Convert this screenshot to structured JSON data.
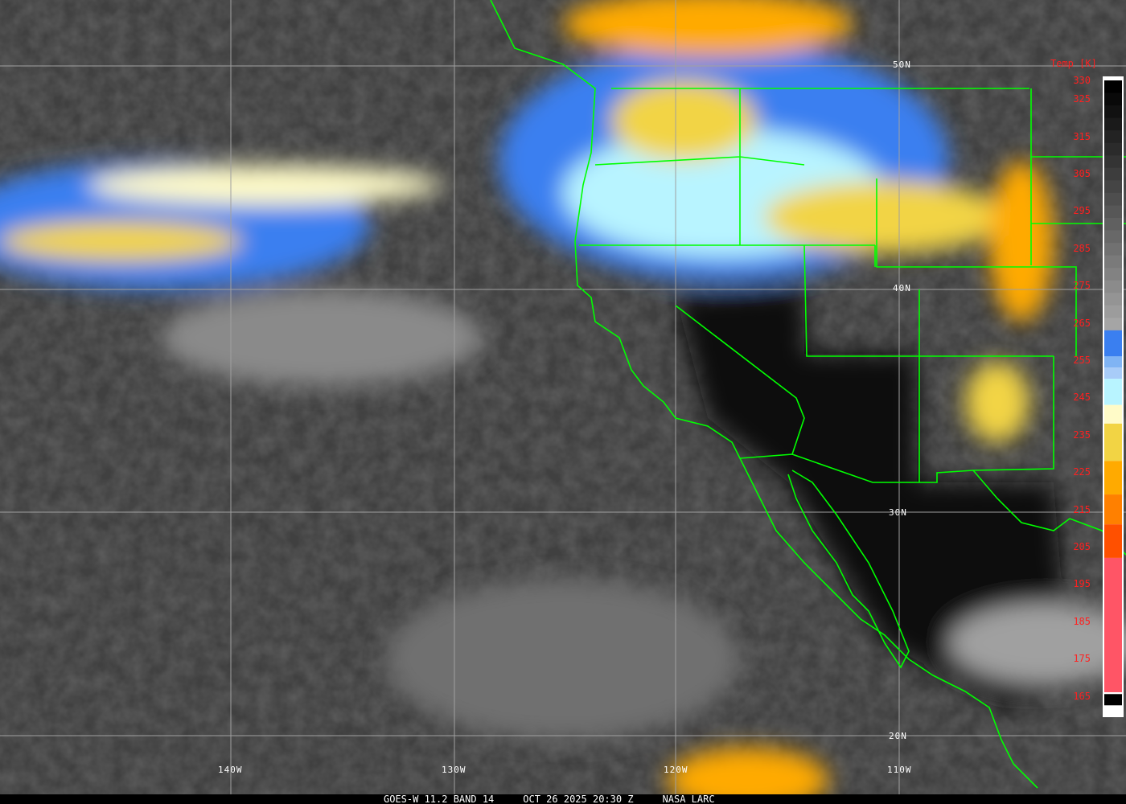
{
  "caption": {
    "satellite": "GOES-W 11.2 BAND 14",
    "datetime": "OCT 26 2025 20:30 Z",
    "credit": "NASA LARC"
  },
  "grid": {
    "latitudes": [
      {
        "label": "50N"
      },
      {
        "label": "40N"
      },
      {
        "label": "30N"
      },
      {
        "label": "20N"
      }
    ],
    "longitudes": [
      {
        "label": "140W"
      },
      {
        "label": "130W"
      },
      {
        "label": "120W"
      },
      {
        "label": "110W"
      }
    ]
  },
  "colorbar": {
    "title": "Temp [K]",
    "ticks": [
      "330",
      "325",
      "315",
      "305",
      "295",
      "285",
      "275",
      "265",
      "255",
      "245",
      "235",
      "225",
      "215",
      "205",
      "195",
      "185",
      "175",
      "165"
    ],
    "range_k": [
      165,
      330
    ],
    "stops": [
      {
        "from": 330,
        "to": 263,
        "color": "gradient-black-to-gray"
      },
      {
        "from": 263,
        "to": 256,
        "color": "#3a7ff0"
      },
      {
        "from": 256,
        "to": 253,
        "color": "#80b4f4"
      },
      {
        "from": 253,
        "to": 250,
        "color": "#a8ccf8"
      },
      {
        "from": 250,
        "to": 243,
        "color": "#b8f4ff"
      },
      {
        "from": 243,
        "to": 238,
        "color": "#fffbc8"
      },
      {
        "from": 238,
        "to": 228,
        "color": "#f2d444"
      },
      {
        "from": 228,
        "to": 219,
        "color": "#ffaa00"
      },
      {
        "from": 219,
        "to": 211,
        "color": "#ff8000"
      },
      {
        "from": 211,
        "to": 202,
        "color": "#ff5000"
      },
      {
        "from": 202,
        "to": 166,
        "color": "#ff5566"
      }
    ]
  },
  "colors": {
    "boundaries": "#00ff00",
    "grid": "#a0a0a0",
    "labels": "#ffffff",
    "ticks": "#ff2020"
  }
}
